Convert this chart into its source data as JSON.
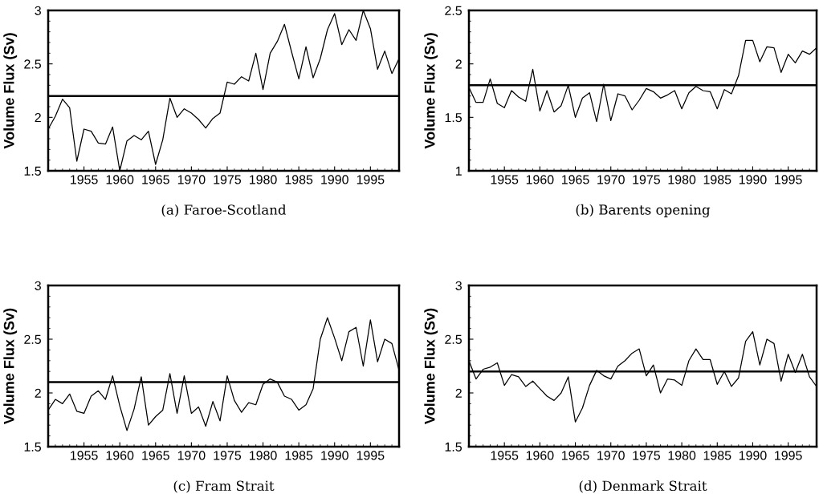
{
  "chart_data": [
    {
      "type": "line",
      "ylabel": "Volume Flux (Sv)",
      "annotations": [
        "(a) Faroe-Scotland"
      ],
      "x": [
        1950,
        1951,
        1952,
        1953,
        1954,
        1955,
        1956,
        1957,
        1958,
        1959,
        1960,
        1961,
        1962,
        1963,
        1964,
        1965,
        1966,
        1967,
        1968,
        1969,
        1970,
        1971,
        1972,
        1973,
        1974,
        1975,
        1976,
        1977,
        1978,
        1979,
        1980,
        1981,
        1982,
        1983,
        1984,
        1985,
        1986,
        1987,
        1988,
        1989,
        1990,
        1991,
        1992,
        1993,
        1994,
        1995,
        1996,
        1997,
        1998,
        1999
      ],
      "series": [
        {
          "color": "#000000",
          "values": [
            1.89,
            2.01,
            2.17,
            2.09,
            1.59,
            1.89,
            1.87,
            1.76,
            1.75,
            1.91,
            1.5,
            1.78,
            1.83,
            1.79,
            1.87,
            1.56,
            1.79,
            2.18,
            2.0,
            2.08,
            2.04,
            1.98,
            1.9,
            1.99,
            2.04,
            2.33,
            2.31,
            2.38,
            2.34,
            2.6,
            2.26,
            2.6,
            2.71,
            2.87,
            2.61,
            2.36,
            2.66,
            2.37,
            2.55,
            2.82,
            2.97,
            2.68,
            2.82,
            2.72,
            3.0,
            2.83,
            2.45,
            2.62,
            2.41,
            2.55
          ]
        }
      ],
      "ref_lines": [
        {
          "axis": "y",
          "value": 2.2,
          "color": "#000000"
        }
      ],
      "xlim": [
        1950,
        1999
      ],
      "xticks": [
        1955,
        1960,
        1965,
        1970,
        1975,
        1980,
        1985,
        1990,
        1995
      ],
      "ylim": [
        1.5,
        3
      ],
      "yticks": [
        1.5,
        2,
        2.5,
        3
      ],
      "grid": false,
      "legend": false
    },
    {
      "type": "line",
      "ylabel": "Volume Flux (Sv)",
      "annotations": [
        "(b) Barents opening"
      ],
      "x": [
        1950,
        1951,
        1952,
        1953,
        1954,
        1955,
        1956,
        1957,
        1958,
        1959,
        1960,
        1961,
        1962,
        1963,
        1964,
        1965,
        1966,
        1967,
        1968,
        1969,
        1970,
        1971,
        1972,
        1973,
        1974,
        1975,
        1976,
        1977,
        1978,
        1979,
        1980,
        1981,
        1982,
        1983,
        1984,
        1985,
        1986,
        1987,
        1988,
        1989,
        1990,
        1991,
        1992,
        1993,
        1994,
        1995,
        1996,
        1997,
        1998,
        1999
      ],
      "series": [
        {
          "color": "#000000",
          "values": [
            1.78,
            1.64,
            1.64,
            1.86,
            1.63,
            1.59,
            1.75,
            1.69,
            1.65,
            1.95,
            1.56,
            1.75,
            1.55,
            1.61,
            1.8,
            1.5,
            1.68,
            1.73,
            1.46,
            1.81,
            1.47,
            1.72,
            1.7,
            1.57,
            1.66,
            1.77,
            1.74,
            1.68,
            1.71,
            1.75,
            1.58,
            1.73,
            1.79,
            1.75,
            1.74,
            1.58,
            1.76,
            1.72,
            1.89,
            2.22,
            2.22,
            2.02,
            2.16,
            2.15,
            1.92,
            2.09,
            2.01,
            2.12,
            2.09,
            2.15
          ]
        }
      ],
      "ref_lines": [
        {
          "axis": "y",
          "value": 1.8,
          "color": "#000000"
        }
      ],
      "xlim": [
        1950,
        1999
      ],
      "xticks": [
        1955,
        1960,
        1965,
        1970,
        1975,
        1980,
        1985,
        1990,
        1995
      ],
      "ylim": [
        1,
        2.5
      ],
      "yticks": [
        1,
        1.5,
        2,
        2.5
      ],
      "grid": false,
      "legend": false
    },
    {
      "type": "line",
      "ylabel": "Volume Flux (Sv)",
      "annotations": [
        "(c) Fram Strait"
      ],
      "x": [
        1950,
        1951,
        1952,
        1953,
        1954,
        1955,
        1956,
        1957,
        1958,
        1959,
        1960,
        1961,
        1962,
        1963,
        1964,
        1965,
        1966,
        1967,
        1968,
        1969,
        1970,
        1971,
        1972,
        1973,
        1974,
        1975,
        1976,
        1977,
        1978,
        1979,
        1980,
        1981,
        1982,
        1983,
        1984,
        1985,
        1986,
        1987,
        1988,
        1989,
        1990,
        1991,
        1992,
        1993,
        1994,
        1995,
        1996,
        1997,
        1998,
        1999
      ],
      "series": [
        {
          "color": "#000000",
          "values": [
            1.84,
            1.94,
            1.9,
            1.99,
            1.83,
            1.81,
            1.97,
            2.02,
            1.94,
            2.16,
            1.88,
            1.65,
            1.85,
            2.15,
            1.7,
            1.78,
            1.84,
            2.18,
            1.81,
            2.16,
            1.81,
            1.87,
            1.69,
            1.92,
            1.74,
            2.16,
            1.93,
            1.82,
            1.91,
            1.89,
            2.08,
            2.13,
            2.1,
            1.97,
            1.94,
            1.84,
            1.89,
            2.04,
            2.5,
            2.7,
            2.51,
            2.3,
            2.57,
            2.61,
            2.25,
            2.68,
            2.29,
            2.5,
            2.46,
            2.21
          ]
        }
      ],
      "ref_lines": [
        {
          "axis": "y",
          "value": 2.1,
          "color": "#000000"
        }
      ],
      "xlim": [
        1950,
        1999
      ],
      "xticks": [
        1955,
        1960,
        1965,
        1970,
        1975,
        1980,
        1985,
        1990,
        1995
      ],
      "ylim": [
        1.5,
        3
      ],
      "yticks": [
        1.5,
        2,
        2.5,
        3
      ],
      "grid": false,
      "legend": false
    },
    {
      "type": "line",
      "ylabel": "Volume Flux (Sv)",
      "annotations": [
        "(d) Denmark Strait"
      ],
      "x": [
        1950,
        1951,
        1952,
        1953,
        1954,
        1955,
        1956,
        1957,
        1958,
        1959,
        1960,
        1961,
        1962,
        1963,
        1964,
        1965,
        1966,
        1967,
        1968,
        1969,
        1970,
        1971,
        1972,
        1973,
        1974,
        1975,
        1976,
        1977,
        1978,
        1979,
        1980,
        1981,
        1982,
        1983,
        1984,
        1985,
        1986,
        1987,
        1988,
        1989,
        1990,
        1991,
        1992,
        1993,
        1994,
        1995,
        1996,
        1997,
        1998,
        1999
      ],
      "series": [
        {
          "color": "#000000",
          "values": [
            2.3,
            2.13,
            2.22,
            2.24,
            2.28,
            2.07,
            2.17,
            2.15,
            2.06,
            2.11,
            2.04,
            1.97,
            1.93,
            2.0,
            2.15,
            1.73,
            1.86,
            2.07,
            2.21,
            2.16,
            2.13,
            2.25,
            2.3,
            2.37,
            2.41,
            2.16,
            2.26,
            2.0,
            2.13,
            2.12,
            2.07,
            2.3,
            2.41,
            2.31,
            2.31,
            2.08,
            2.2,
            2.06,
            2.14,
            2.48,
            2.57,
            2.26,
            2.5,
            2.46,
            2.11,
            2.36,
            2.19,
            2.36,
            2.15,
            2.06
          ]
        }
      ],
      "ref_lines": [
        {
          "axis": "y",
          "value": 2.2,
          "color": "#000000"
        }
      ],
      "xlim": [
        1950,
        1999
      ],
      "xticks": [
        1955,
        1960,
        1965,
        1970,
        1975,
        1980,
        1985,
        1990,
        1995
      ],
      "ylim": [
        1.5,
        3
      ],
      "yticks": [
        1.5,
        2,
        2.5,
        3
      ],
      "grid": false,
      "legend": false
    }
  ]
}
